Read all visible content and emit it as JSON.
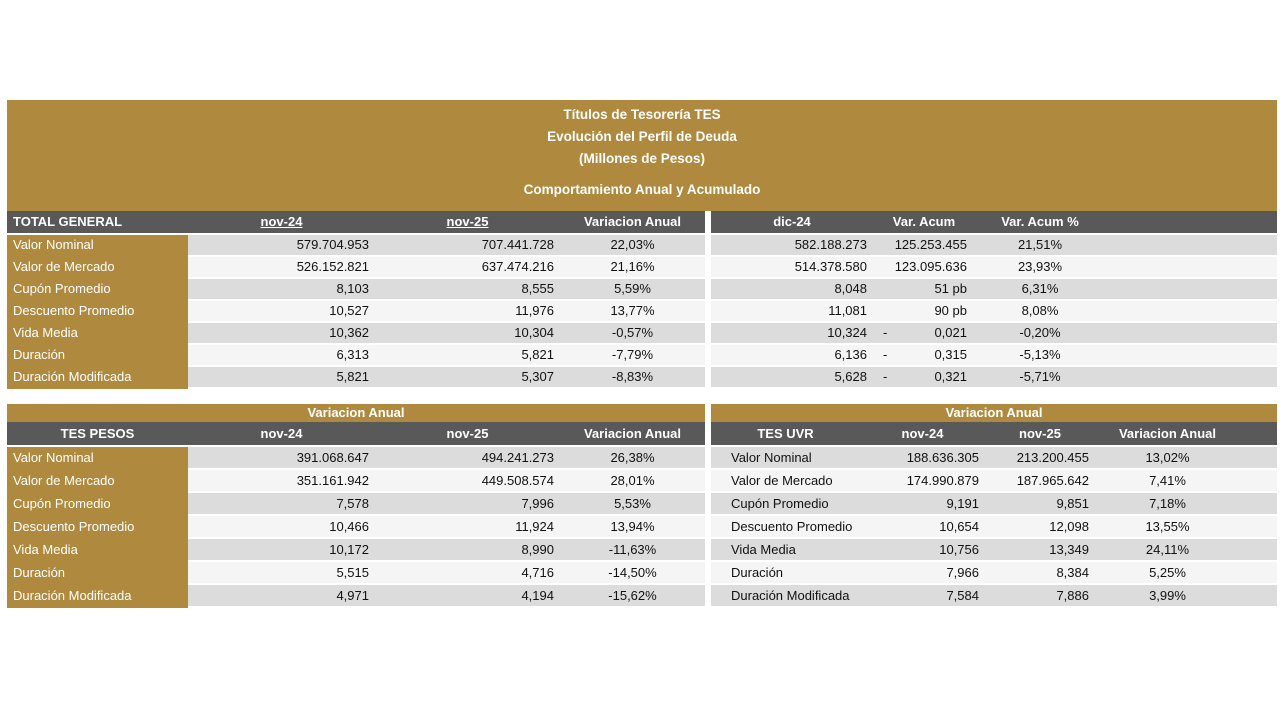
{
  "report": {
    "title_lines": [
      "Títulos de Tesorería TES",
      "Evolución del Perfil de Deuda",
      "(Millones de Pesos)",
      "Comportamiento Anual y Acumulado"
    ]
  },
  "colors": {
    "gold": "#AF8A3E",
    "header_gray": "#595959",
    "stripe_dark": "#DCDCDC",
    "stripe_light": "#F5F5F5"
  },
  "total_general": {
    "label": "TOTAL GENERAL",
    "columns": [
      "nov-24",
      "nov-25",
      "Variacion Anual"
    ],
    "right_columns": [
      "dic-24",
      "Var. Acum",
      "Var. Acum %"
    ],
    "rows": [
      {
        "label": "Valor Nominal",
        "nov24": "579.704.953",
        "nov25": "707.441.728",
        "var_anual": "22,03%",
        "dic24": "582.188.273",
        "var_acum_sign": "",
        "var_acum": "125.253.455",
        "var_acum_pct": "21,51%"
      },
      {
        "label": "Valor de Mercado",
        "nov24": "526.152.821",
        "nov25": "637.474.216",
        "var_anual": "21,16%",
        "dic24": "514.378.580",
        "var_acum_sign": "",
        "var_acum": "123.095.636",
        "var_acum_pct": "23,93%"
      },
      {
        "label": "Cupón Promedio",
        "nov24": "8,103",
        "nov25": "8,555",
        "var_anual": "5,59%",
        "dic24": "8,048",
        "var_acum_sign": "",
        "var_acum": "51 pb",
        "var_acum_pct": "6,31%"
      },
      {
        "label": "Descuento Promedio",
        "nov24": "10,527",
        "nov25": "11,976",
        "var_anual": "13,77%",
        "dic24": "11,081",
        "var_acum_sign": "",
        "var_acum": "90 pb",
        "var_acum_pct": "8,08%"
      },
      {
        "label": "Vida Media",
        "nov24": "10,362",
        "nov25": "10,304",
        "var_anual": "-0,57%",
        "dic24": "10,324",
        "var_acum_sign": "-",
        "var_acum": "0,021",
        "var_acum_pct": "-0,20%"
      },
      {
        "label": "Duración",
        "nov24": "6,313",
        "nov25": "5,821",
        "var_anual": "-7,79%",
        "dic24": "6,136",
        "var_acum_sign": "-",
        "var_acum": "0,315",
        "var_acum_pct": "-5,13%"
      },
      {
        "label": "Duración Modificada",
        "nov24": "5,821",
        "nov25": "5,307",
        "var_anual": "-8,83%",
        "dic24": "5,628",
        "var_acum_sign": "-",
        "var_acum": "0,321",
        "var_acum_pct": "-5,71%"
      }
    ]
  },
  "tes_pesos": {
    "band_label": "Variacion Anual",
    "label": "TES PESOS",
    "columns": [
      "nov-24",
      "nov-25",
      "Variacion Anual"
    ],
    "rows": [
      {
        "label": "Valor Nominal",
        "nov24": "391.068.647",
        "nov25": "494.241.273",
        "var_anual": "26,38%"
      },
      {
        "label": "Valor de Mercado",
        "nov24": "351.161.942",
        "nov25": "449.508.574",
        "var_anual": "28,01%"
      },
      {
        "label": "Cupón Promedio",
        "nov24": "7,578",
        "nov25": "7,996",
        "var_anual": "5,53%"
      },
      {
        "label": "Descuento Promedio",
        "nov24": "10,466",
        "nov25": "11,924",
        "var_anual": "13,94%"
      },
      {
        "label": "Vida Media",
        "nov24": "10,172",
        "nov25": "8,990",
        "var_anual": "-11,63%"
      },
      {
        "label": "Duración",
        "nov24": "5,515",
        "nov25": "4,716",
        "var_anual": "-14,50%"
      },
      {
        "label": "Duración Modificada",
        "nov24": "4,971",
        "nov25": "4,194",
        "var_anual": "-15,62%"
      }
    ]
  },
  "tes_uvr": {
    "band_label": "Variacion Anual",
    "label": "TES UVR",
    "columns": [
      "nov-24",
      "nov-25",
      "Variacion Anual"
    ],
    "rows": [
      {
        "label": "Valor Nominal",
        "nov24": "188.636.305",
        "nov25": "213.200.455",
        "var_anual": "13,02%"
      },
      {
        "label": "Valor de Mercado",
        "nov24": "174.990.879",
        "nov25": "187.965.642",
        "var_anual": "7,41%"
      },
      {
        "label": "Cupón Promedio",
        "nov24": "9,191",
        "nov25": "9,851",
        "var_anual": "7,18%"
      },
      {
        "label": "Descuento Promedio",
        "nov24": "10,654",
        "nov25": "12,098",
        "var_anual": "13,55%"
      },
      {
        "label": "Vida Media",
        "nov24": "10,756",
        "nov25": "13,349",
        "var_anual": "24,11%"
      },
      {
        "label": "Duración",
        "nov24": "7,966",
        "nov25": "8,384",
        "var_anual": "5,25%"
      },
      {
        "label": "Duración Modificada",
        "nov24": "7,584",
        "nov25": "7,886",
        "var_anual": "3,99%"
      }
    ]
  }
}
